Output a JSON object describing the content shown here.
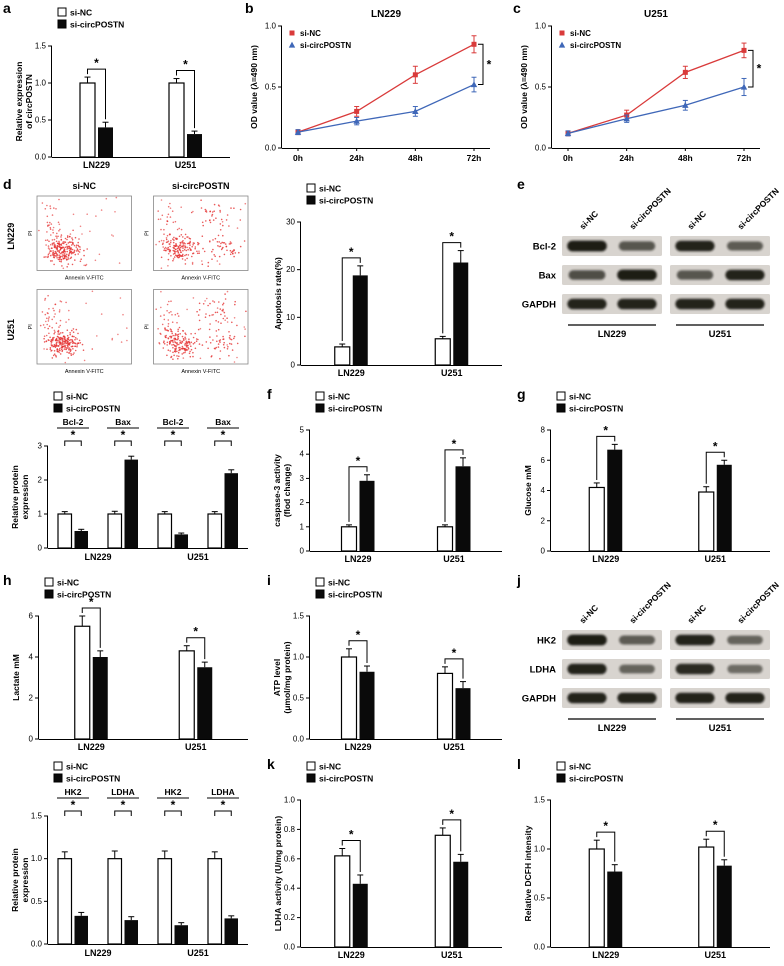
{
  "figure": {
    "colors": {
      "bar_nc_fill": "#ffffff",
      "bar_circ_fill": "#0a0a0a",
      "line_nc": "#d93a3a",
      "line_circ": "#3f67b8",
      "flow_dots": "#e53232",
      "blot_bg": "#d8d4cf"
    }
  },
  "panels": {
    "a": {
      "letter": "a"
    },
    "b": {
      "letter": "b"
    },
    "c": {
      "letter": "c"
    },
    "d": {
      "letter": "d"
    },
    "e": {
      "letter": "e"
    },
    "f": {
      "letter": "f"
    },
    "g": {
      "letter": "g"
    },
    "h": {
      "letter": "h"
    },
    "i": {
      "letter": "i"
    },
    "j": {
      "letter": "j"
    },
    "k": {
      "letter": "k"
    },
    "l": {
      "letter": "l"
    }
  },
  "flow": {
    "col_labels": [
      "si-NC",
      "si-circPOSTN"
    ],
    "row_labels": [
      "LN229",
      "U251"
    ],
    "x_axis": "Annexin V-FITC",
    "y_axis": "PI"
  },
  "blot_e": {
    "lane_labels": [
      "si-NC",
      "si-circPOSTN",
      "si-NC",
      "si-circPOSTN"
    ],
    "rows": [
      {
        "label": "Bcl-2",
        "intensities": [
          0.95,
          0.55,
          0.9,
          0.5
        ]
      },
      {
        "label": "Bax",
        "intensities": [
          0.6,
          0.95,
          0.55,
          0.9
        ]
      },
      {
        "label": "GAPDH",
        "intensities": [
          0.9,
          0.9,
          0.9,
          0.9
        ]
      }
    ],
    "group_labels": [
      "LN229",
      "U251"
    ]
  },
  "blot_j": {
    "lane_labels": [
      "si-NC",
      "si-circPOSTN",
      "si-NC",
      "si-circPOSTN"
    ],
    "rows": [
      {
        "label": "HK2",
        "intensities": [
          0.95,
          0.5,
          0.9,
          0.45
        ]
      },
      {
        "label": "LDHA",
        "intensities": [
          0.9,
          0.45,
          0.85,
          0.4
        ]
      },
      {
        "label": "GAPDH",
        "intensities": [
          0.9,
          0.9,
          0.9,
          0.9
        ]
      }
    ],
    "group_labels": [
      "LN229",
      "U251"
    ]
  },
  "chart_data": [
    {
      "panel": "a",
      "type": "bar",
      "ylabel": [
        "Relative expression",
        "of circPOSTN"
      ],
      "ylim": [
        0,
        1.5
      ],
      "yticks": [
        0,
        0.5,
        1,
        1.5
      ],
      "dec": 1,
      "categories": [
        "LN229",
        "U251"
      ],
      "series": [
        {
          "name": "si-NC",
          "values": [
            1.0,
            1.0
          ],
          "errors": [
            0.08,
            0.06
          ]
        },
        {
          "name": "si-circPOSTN",
          "values": [
            0.4,
            0.31
          ],
          "errors": [
            0.07,
            0.04
          ]
        }
      ],
      "sig": [
        "*",
        "*"
      ]
    },
    {
      "panel": "b",
      "type": "line",
      "title": "LN229",
      "ylabel": "OD value (λ=490 nm)",
      "ylim": [
        0,
        1.0
      ],
      "yticks": [
        0,
        0.5,
        1.0
      ],
      "dec": 1,
      "x": [
        "0h",
        "24h",
        "48h",
        "72h"
      ],
      "series": [
        {
          "name": "si-NC",
          "values": [
            0.13,
            0.3,
            0.6,
            0.85
          ],
          "errors": [
            0.02,
            0.04,
            0.07,
            0.07
          ]
        },
        {
          "name": "si-circPOSTN",
          "values": [
            0.13,
            0.22,
            0.3,
            0.52
          ],
          "errors": [
            0.02,
            0.03,
            0.04,
            0.06
          ]
        }
      ],
      "sig_end": "*"
    },
    {
      "panel": "c",
      "type": "line",
      "title": "U251",
      "ylabel": "OD value (λ=490 nm)",
      "ylim": [
        0,
        1.0
      ],
      "yticks": [
        0,
        0.5,
        1.0
      ],
      "dec": 1,
      "x": [
        "0h",
        "24h",
        "48h",
        "72h"
      ],
      "series": [
        {
          "name": "si-NC",
          "values": [
            0.12,
            0.27,
            0.62,
            0.8
          ],
          "errors": [
            0.02,
            0.04,
            0.05,
            0.06
          ]
        },
        {
          "name": "si-circPOSTN",
          "values": [
            0.12,
            0.24,
            0.35,
            0.5
          ],
          "errors": [
            0.02,
            0.03,
            0.04,
            0.07
          ]
        }
      ],
      "sig_end": "*"
    },
    {
      "panel": "d",
      "type": "bar",
      "ylabel": [
        "Apoptosis rate(%)"
      ],
      "ylim": [
        0,
        30
      ],
      "yticks": [
        0,
        10,
        20,
        30
      ],
      "dec": 0,
      "categories": [
        "LN229",
        "U251"
      ],
      "series": [
        {
          "name": "si-NC",
          "values": [
            3.8,
            5.5
          ],
          "errors": [
            0.6,
            0.5
          ]
        },
        {
          "name": "si-circPOSTN",
          "values": [
            18.8,
            21.5
          ],
          "errors": [
            2.0,
            2.5
          ]
        }
      ],
      "sig": [
        "*",
        "*"
      ]
    },
    {
      "panel": "d2",
      "type": "bar",
      "ylabel": [
        "Relative protein",
        "expression"
      ],
      "ylim": [
        0,
        3
      ],
      "yticks": [
        0,
        1,
        2,
        3
      ],
      "dec": 0,
      "categories": [
        "Bcl-2",
        "Bax",
        "Bcl-2",
        "Bax"
      ],
      "cat_top": true,
      "group_labels": [
        "LN229",
        "U251"
      ],
      "series": [
        {
          "name": "si-NC",
          "values": [
            1.0,
            1.0,
            1.0,
            1.0
          ],
          "errors": [
            0.07,
            0.08,
            0.07,
            0.07
          ]
        },
        {
          "name": "si-circPOSTN",
          "values": [
            0.5,
            2.6,
            0.4,
            2.2
          ],
          "errors": [
            0.05,
            0.1,
            0.04,
            0.1
          ]
        }
      ],
      "sig": [
        "*",
        "*",
        "*",
        "*"
      ]
    },
    {
      "panel": "f",
      "type": "bar",
      "ylabel": [
        "caspase-3 activity",
        "(flod change)"
      ],
      "ylim": [
        0,
        5
      ],
      "yticks": [
        0,
        1,
        2,
        3,
        4,
        5
      ],
      "dec": 0,
      "categories": [
        "LN229",
        "U251"
      ],
      "series": [
        {
          "name": "si-NC",
          "values": [
            1.0,
            1.0
          ],
          "errors": [
            0.08,
            0.08
          ]
        },
        {
          "name": "si-circPOSTN",
          "values": [
            2.9,
            3.5
          ],
          "errors": [
            0.25,
            0.35
          ]
        }
      ],
      "sig": [
        "*",
        "*"
      ]
    },
    {
      "panel": "g",
      "type": "bar",
      "ylabel": [
        "Glucose mM"
      ],
      "ylim": [
        0,
        8
      ],
      "yticks": [
        0,
        2,
        4,
        6,
        8
      ],
      "dec": 0,
      "categories": [
        "LN229",
        "U251"
      ],
      "series": [
        {
          "name": "si-NC",
          "values": [
            4.2,
            3.9
          ],
          "errors": [
            0.3,
            0.35
          ]
        },
        {
          "name": "si-circPOSTN",
          "values": [
            6.7,
            5.7
          ],
          "errors": [
            0.35,
            0.3
          ]
        }
      ],
      "sig": [
        "*",
        "*"
      ]
    },
    {
      "panel": "h",
      "type": "bar",
      "ylabel": [
        "Lactate mM"
      ],
      "ylim": [
        0,
        6
      ],
      "yticks": [
        0,
        2,
        4,
        6
      ],
      "dec": 0,
      "categories": [
        "LN229",
        "U251"
      ],
      "series": [
        {
          "name": "si-NC",
          "values": [
            5.5,
            4.3
          ],
          "errors": [
            0.5,
            0.25
          ]
        },
        {
          "name": "si-circPOSTN",
          "values": [
            4.0,
            3.5
          ],
          "errors": [
            0.3,
            0.25
          ]
        }
      ],
      "sig": [
        "*",
        "*"
      ]
    },
    {
      "panel": "i",
      "type": "bar",
      "ylabel": [
        "ATP level",
        "(μmol/mg protein)"
      ],
      "ylim": [
        0,
        1.5
      ],
      "yticks": [
        0,
        0.5,
        1,
        1.5
      ],
      "dec": 1,
      "categories": [
        "LN229",
        "U251"
      ],
      "series": [
        {
          "name": "si-NC",
          "values": [
            1.0,
            0.8
          ],
          "errors": [
            0.1,
            0.08
          ]
        },
        {
          "name": "si-circPOSTN",
          "values": [
            0.82,
            0.62
          ],
          "errors": [
            0.07,
            0.08
          ]
        }
      ],
      "sig": [
        "*",
        "*"
      ]
    },
    {
      "panel": "j2",
      "type": "bar",
      "ylabel": [
        "Relative protein",
        "expression"
      ],
      "ylim": [
        0,
        1.5
      ],
      "yticks": [
        0,
        0.5,
        1,
        1.5
      ],
      "dec": 1,
      "categories": [
        "HK2",
        "LDHA",
        "HK2",
        "LDHA"
      ],
      "cat_top": true,
      "group_labels": [
        "LN229",
        "U251"
      ],
      "series": [
        {
          "name": "si-NC",
          "values": [
            1.0,
            1.0,
            1.0,
            1.0
          ],
          "errors": [
            0.08,
            0.09,
            0.09,
            0.08
          ]
        },
        {
          "name": "si-circPOSTN",
          "values": [
            0.33,
            0.28,
            0.22,
            0.3
          ],
          "errors": [
            0.04,
            0.04,
            0.03,
            0.03
          ]
        }
      ],
      "sig": [
        "*",
        "*",
        "*",
        "*"
      ]
    },
    {
      "panel": "k",
      "type": "bar",
      "ylabel": [
        "LDHA activity (U/mg protein)"
      ],
      "ylim": [
        0,
        1.0
      ],
      "yticks": [
        0,
        0.2,
        0.4,
        0.6,
        0.8,
        1.0
      ],
      "dec": 1,
      "categories": [
        "LN229",
        "U251"
      ],
      "series": [
        {
          "name": "si-NC",
          "values": [
            0.62,
            0.76
          ],
          "errors": [
            0.05,
            0.05
          ]
        },
        {
          "name": "si-circPOSTN",
          "values": [
            0.43,
            0.58
          ],
          "errors": [
            0.06,
            0.05
          ]
        }
      ],
      "sig": [
        "*",
        "*"
      ]
    },
    {
      "panel": "l",
      "type": "bar",
      "ylabel": [
        "Relative DCFH intensity"
      ],
      "ylim": [
        0,
        1.5
      ],
      "yticks": [
        0,
        0.5,
        1,
        1.5
      ],
      "dec": 1,
      "categories": [
        "LN229",
        "U251"
      ],
      "series": [
        {
          "name": "si-NC",
          "values": [
            1.0,
            1.02
          ],
          "errors": [
            0.09,
            0.08
          ]
        },
        {
          "name": "si-circPOSTN",
          "values": [
            0.77,
            0.83
          ],
          "errors": [
            0.07,
            0.06
          ]
        }
      ],
      "sig": [
        "*",
        "*"
      ]
    }
  ]
}
